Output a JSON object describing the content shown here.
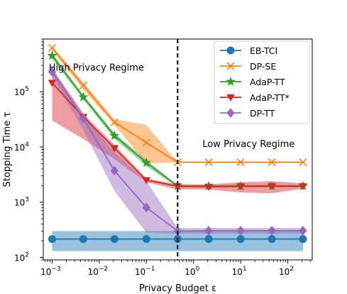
{
  "chart_data": {
    "type": "line",
    "xlabel": "Privacy Budget ε",
    "ylabel": "Stopping Time τ",
    "xscale": "log",
    "yscale": "log",
    "xlim": [
      0.00065,
      330
    ],
    "ylim": [
      90,
      900000
    ],
    "grid": false,
    "legend_position": "top-right",
    "x_ticks": [
      {
        "value": 0.001,
        "base": "10",
        "exp": "−3"
      },
      {
        "value": 0.01,
        "base": "10",
        "exp": "−2"
      },
      {
        "value": 0.1,
        "base": "10",
        "exp": "−1"
      },
      {
        "value": 1,
        "base": "10",
        "exp": "0"
      },
      {
        "value": 10,
        "base": "10",
        "exp": "1"
      },
      {
        "value": 100,
        "base": "10",
        "exp": "2"
      }
    ],
    "y_ticks": [
      {
        "value": 100,
        "base": "10",
        "exp": "2"
      },
      {
        "value": 1000,
        "base": "10",
        "exp": "3"
      },
      {
        "value": 10000,
        "base": "10",
        "exp": "4"
      },
      {
        "value": 100000,
        "base": "10",
        "exp": "5"
      }
    ],
    "x": [
      0.001,
      0.0046,
      0.021,
      0.1,
      0.46,
      2.1,
      10,
      46,
      210
    ],
    "series": [
      {
        "name": "EB-TCI",
        "color": "#1f77b4",
        "marker": "circle",
        "values": [
          215,
          215,
          215,
          215,
          215,
          215,
          215,
          215,
          215
        ],
        "band_low": [
          130,
          130,
          130,
          130,
          130,
          130,
          130,
          130,
          130
        ],
        "band_high": [
          300,
          300,
          300,
          300,
          300,
          300,
          300,
          300,
          300
        ]
      },
      {
        "name": "DP-SE",
        "color": "#ff7f0e",
        "marker": "x",
        "values": [
          620000,
          130000,
          28000,
          12000,
          5300,
          5300,
          5300,
          5300,
          5300
        ],
        "band_low": [
          560000,
          110000,
          25000,
          5000,
          5300,
          5300,
          5300,
          5300,
          5300
        ],
        "band_high": [
          680000,
          150000,
          32000,
          25000,
          5300,
          5300,
          5300,
          5300,
          5300
        ]
      },
      {
        "name": "AdaP-TT",
        "color": "#2ca02c",
        "marker": "star",
        "values": [
          450000,
          80000,
          16000,
          5200,
          1950,
          1950,
          1950,
          1950,
          1950
        ],
        "band_low": [
          400000,
          72000,
          14000,
          4500,
          1850,
          1850,
          1850,
          1850,
          1850
        ],
        "band_high": [
          510000,
          88000,
          18000,
          5800,
          2050,
          2050,
          2050,
          2050,
          2050
        ]
      },
      {
        "name": "AdaP-TT*",
        "color": "#d62728",
        "marker": "triangle-down",
        "values": [
          145000,
          35000,
          9500,
          2500,
          1950,
          1900,
          1950,
          1950,
          1950
        ],
        "band_low": [
          30000,
          14000,
          6000,
          2300,
          1700,
          1700,
          1500,
          1450,
          1750
        ],
        "band_high": [
          260000,
          40000,
          11000,
          2700,
          2100,
          2100,
          2300,
          2400,
          2200
        ]
      },
      {
        "name": "DP-TT",
        "color": "#9467bd",
        "marker": "diamond",
        "values": [
          230000,
          33000,
          3700,
          800,
          300,
          305,
          305,
          305,
          305
        ],
        "band_low": [
          190000,
          20000,
          1600,
          280,
          270,
          270,
          270,
          270,
          270
        ],
        "band_high": [
          270000,
          40000,
          8000,
          2400,
          340,
          340,
          340,
          340,
          340
        ]
      }
    ],
    "vline": {
      "x": 0.46,
      "style": "dashed",
      "color": "#000000"
    },
    "annotations": [
      {
        "text": "High Privacy Regime",
        "x": 0.00085,
        "y": 240000
      },
      {
        "text": "Low Privacy Regime",
        "x": 1.55,
        "y": 10000
      }
    ]
  }
}
